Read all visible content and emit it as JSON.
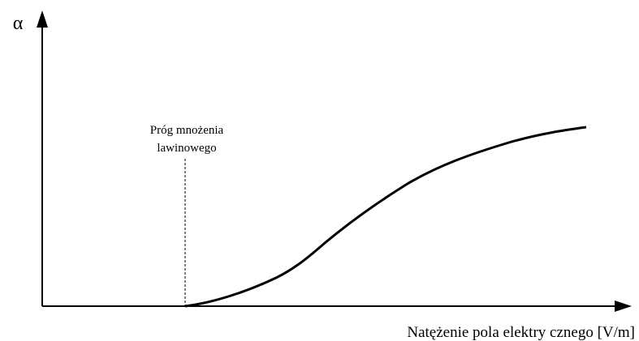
{
  "y_axis": {
    "label": "α"
  },
  "x_axis": {
    "label": "Natężenie pola elektry cznego [V/m]"
  },
  "annotation": {
    "lines": [
      "Próg mnożenia",
      "lawinowego"
    ]
  }
}
